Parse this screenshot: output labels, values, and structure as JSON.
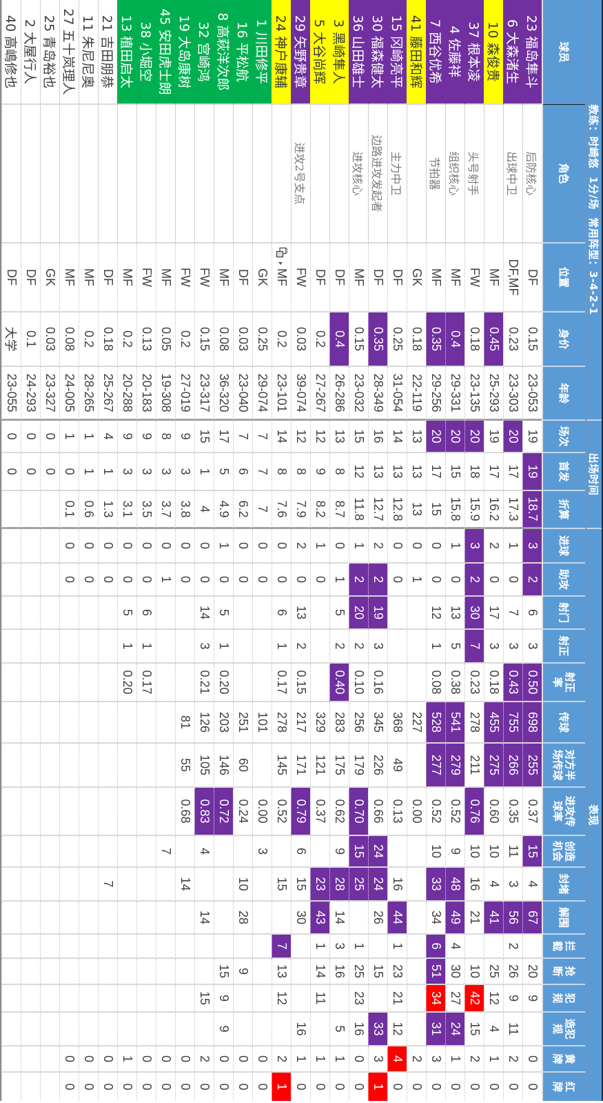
{
  "sheet": {
    "colors": {
      "header": "#5b9bd5",
      "purple": "#7030a0",
      "yellow": "#ffff00",
      "green": "#00b050",
      "red": "#ff0000"
    },
    "title_groups": [
      {
        "label": "教练：时崎悠  1分/场  常用阵型：3-4-2-1"
      },
      {
        "label": "出场时间"
      },
      {
        "label": "表现"
      }
    ],
    "columns": [
      {
        "key": "player",
        "label": "球员"
      },
      {
        "key": "role",
        "label": "角色"
      },
      {
        "key": "position",
        "label": "位置"
      },
      {
        "key": "value",
        "label": "身价"
      },
      {
        "key": "age",
        "label": "年龄"
      },
      {
        "key": "apps",
        "label": "场次"
      },
      {
        "key": "starts",
        "label": "首发"
      },
      {
        "key": "equiv-apps",
        "label": "折算"
      },
      {
        "key": "goals",
        "label": "进球"
      },
      {
        "key": "assists",
        "label": "助攻"
      },
      {
        "key": "shots",
        "label": "射门"
      },
      {
        "key": "shots-on-target",
        "label": "射正"
      },
      {
        "key": "shot-accuracy",
        "label": "射正\n率"
      },
      {
        "key": "passes",
        "label": "传球"
      },
      {
        "key": "opp-half-passes",
        "label": "对方半\n场传球"
      },
      {
        "key": "attacking-pass-rate",
        "label": "进攻传\n球率"
      },
      {
        "key": "chances-created",
        "label": "创造\n机会"
      },
      {
        "key": "blocks",
        "label": "封堵"
      },
      {
        "key": "clearances",
        "label": "解围"
      },
      {
        "key": "interceptions",
        "label": "拦\n截"
      },
      {
        "key": "tackles",
        "label": "抢\n断"
      },
      {
        "key": "fouls",
        "label": "犯\n规"
      },
      {
        "key": "fouled",
        "label": "造犯\n规"
      },
      {
        "key": "yellow-cards",
        "label": "黄\n牌"
      },
      {
        "key": "red-cards",
        "label": "红\n牌"
      }
    ],
    "rows": [
      {
        "player": "23 福岛隼斗",
        "tag": "purple",
        "cells": [
          "后防核心",
          "DF",
          "0.15",
          "23-053",
          "19",
          "19",
          "18.7",
          "3",
          "2",
          "6",
          "3",
          "0.50",
          "698",
          "255",
          "0.37",
          "15",
          "4",
          "67",
          "",
          "20",
          "9",
          "",
          "0",
          "0"
        ],
        "purple": [
          5,
          6,
          7,
          8,
          11,
          12,
          13,
          15,
          17
        ],
        "red": []
      },
      {
        "player": "6 大森渚生",
        "tag": "purple",
        "cells": [
          "出球中卫",
          "DF,MF",
          "0.23",
          "23-303",
          "20",
          "17",
          "17.3",
          "1",
          "0",
          "7",
          "3",
          "0.43",
          "755",
          "266",
          "0.35",
          "11",
          "3",
          "56",
          "2",
          "26",
          "9",
          "11",
          "2",
          "0"
        ],
        "purple": [
          4,
          11,
          12,
          13,
          17
        ],
        "red": []
      },
      {
        "player": "10 森俊贵",
        "tag": "yellow",
        "cells": [
          "",
          "MF",
          "0.45",
          "25-293",
          "19",
          "17",
          "16.2",
          "2",
          "0",
          "17",
          "3",
          "0.18",
          "455",
          "275",
          "0.60",
          "10",
          "4",
          "41",
          "",
          "25",
          "12",
          "4",
          "1",
          "0"
        ],
        "purple": [
          2,
          12,
          13,
          17
        ],
        "red": []
      },
      {
        "player": "37 根本凌",
        "tag": "purple",
        "cells": [
          "头号射手",
          "FW",
          "0.18",
          "23-135",
          "20",
          "18",
          "15.9",
          "3",
          "2",
          "30",
          "7",
          "0.23",
          "278",
          "211",
          "0.76",
          "10",
          "16",
          "21",
          "",
          "10",
          "42",
          "15",
          "2",
          "0"
        ],
        "purple": [
          4,
          7,
          8,
          9,
          10,
          14
        ],
        "red": [
          20
        ]
      },
      {
        "player": "4 佐藤祥",
        "tag": "purple",
        "cells": [
          "组织核心",
          "MF",
          "0.4",
          "29-331",
          "20",
          "15",
          "15.8",
          "1",
          "0",
          "13",
          "5",
          "0.38",
          "541",
          "279",
          "0.52",
          "9",
          "48",
          "49",
          "4",
          "30",
          "27",
          "24",
          "1",
          "0"
        ],
        "purple": [
          2,
          4,
          12,
          13,
          16,
          17,
          21
        ],
        "red": []
      },
      {
        "player": "7 西谷优希",
        "tag": "purple",
        "cells": [
          "节拍器",
          "MF",
          "0.35",
          "29-256",
          "20",
          "17",
          "15",
          "0",
          "0",
          "12",
          "1",
          "0.08",
          "528",
          "277",
          "0.52",
          "10",
          "33",
          "34",
          "6",
          "51",
          "34",
          "31",
          "3",
          "0"
        ],
        "purple": [
          2,
          4,
          12,
          13,
          16,
          18,
          19,
          21
        ],
        "red": [
          20
        ]
      },
      {
        "player": "41 藤田和辉",
        "tag": "yellow",
        "cells": [
          "",
          "GK",
          "0.18",
          "22-119",
          "13",
          "13",
          "13",
          "0",
          "1",
          "",
          "",
          "",
          "227",
          "",
          "0.00",
          "",
          "",
          "",
          "",
          "",
          "",
          "",
          "2",
          "0"
        ],
        "purple": [],
        "red": []
      },
      {
        "player": "15 冈崎亮平",
        "tag": "purple",
        "cells": [
          "主力中卫",
          "DF",
          "0.25",
          "31-054",
          "14",
          "13",
          "12.8",
          "0",
          "0",
          "",
          "",
          "",
          "368",
          "49",
          "0.13",
          "",
          "16",
          "44",
          "1",
          "23",
          "21",
          "12",
          "4",
          "0"
        ],
        "purple": [
          17
        ],
        "red": [
          22
        ]
      },
      {
        "player": "30 福森健太",
        "tag": "purple",
        "cells": [
          "边路进攻发起者",
          "DF",
          "0.35",
          "28-349",
          "16",
          "13",
          "12.7",
          "2",
          "2",
          "19",
          "3",
          "0.16",
          "345",
          "226",
          "0.66",
          "24",
          "24",
          "26",
          "",
          "15",
          "",
          "33",
          "3",
          "1"
        ],
        "purple": [
          2,
          8,
          9,
          15,
          16,
          21
        ],
        "red": [
          23
        ]
      },
      {
        "player": "36 山田雄士",
        "tag": "purple",
        "cells": [
          "进攻核心",
          "MF",
          "0.15",
          "23-032",
          "15",
          "12",
          "11.8",
          "1",
          "2",
          "20",
          "2",
          "0.10",
          "256",
          "179",
          "0.70",
          "15",
          "25",
          "",
          "1",
          "25",
          "23",
          "16",
          "0",
          "0"
        ],
        "purple": [
          8,
          9,
          14,
          15,
          16
        ],
        "red": []
      },
      {
        "player": "3 黑崎隼人",
        "tag": "yellow",
        "cells": [
          "",
          "DF",
          "0.4",
          "26-286",
          "13",
          "8",
          "8.7",
          "0",
          "1",
          "5",
          "2",
          "0.40",
          "283",
          "175",
          "0.62",
          "9",
          "28",
          "14",
          "3",
          "16",
          "",
          "5",
          "1",
          "0"
        ],
        "purple": [
          2,
          11,
          16
        ],
        "red": []
      },
      {
        "player": "5 大谷尚辉",
        "tag": "yellow",
        "cells": [
          "",
          "DF",
          "0.2",
          "27-267",
          "12",
          "9",
          "8.2",
          "1",
          "0",
          "",
          "",
          "",
          "329",
          "121",
          "0.37",
          "",
          "23",
          "43",
          "1",
          "14",
          "11",
          "",
          "1",
          "0"
        ],
        "purple": [
          16,
          17
        ],
        "red": []
      },
      {
        "player": "29 矢野贵章",
        "tag": "purple",
        "cells": [
          "进攻2号支点",
          "FW",
          "0.03",
          "39-074",
          "12",
          "8",
          "7.9",
          "2",
          "0",
          "13",
          "2",
          "0.15",
          "217",
          "171",
          "0.79",
          "6",
          "15",
          "30",
          "",
          "",
          "",
          "16",
          "1",
          "0"
        ],
        "purple": [
          14
        ],
        "red": []
      },
      {
        "player": "24 神户康辅",
        "tag": "yellow",
        "cells": [
          "",
          "MF",
          "0.2",
          "23-101",
          "14",
          "8",
          "7.6",
          "0",
          "0",
          "6",
          "1",
          "0.17",
          "278",
          "145",
          "0.52",
          "",
          "15",
          "",
          "7",
          "13",
          "12",
          "",
          "2",
          "1"
        ],
        "purple": [
          18
        ],
        "red": [
          23
        ]
      },
      {
        "player": "1 川田修平",
        "tag": "green",
        "cells": [
          "",
          "GK",
          "0.25",
          "29-074",
          "7",
          "7",
          "7",
          "0",
          "0",
          "",
          "",
          "",
          "101",
          "",
          "0.00",
          "3",
          "",
          "",
          "",
          "",
          "",
          "",
          "0",
          "0"
        ],
        "purple": [],
        "red": []
      },
      {
        "player": "16 平松航",
        "tag": "green",
        "cells": [
          "",
          "DF",
          "0.03",
          "23-040",
          "7",
          "6",
          "6.2",
          "0",
          "0",
          "",
          "",
          "",
          "251",
          "60",
          "0.24",
          "",
          "10",
          "28",
          "",
          "9",
          "",
          "",
          "0",
          "0"
        ],
        "purple": [],
        "red": []
      },
      {
        "player": "8 高萩洋次郎",
        "tag": "green",
        "cells": [
          "",
          "MF",
          "0.08",
          "36-320",
          "17",
          "5",
          "4.9",
          "1",
          "0",
          "5",
          "1",
          "0.20",
          "203",
          "146",
          "0.72",
          "",
          "",
          "",
          "",
          "15",
          "9",
          "9",
          "0",
          "0"
        ],
        "purple": [
          14
        ],
        "red": []
      },
      {
        "player": "32 宫崎鸿",
        "tag": "green",
        "cells": [
          "",
          "FW",
          "0.15",
          "23-317",
          "15",
          "1",
          "4",
          "0",
          "0",
          "14",
          "3",
          "0.21",
          "126",
          "105",
          "0.83",
          "4",
          "",
          "14",
          "",
          "",
          "15",
          "",
          "2",
          "0"
        ],
        "purple": [
          14
        ],
        "red": []
      },
      {
        "player": "19 大岛康树",
        "tag": "green",
        "cells": [
          "",
          "FW",
          "0.2",
          "27-019",
          "9",
          "3",
          "3.8",
          "0",
          "0",
          "",
          "",
          "",
          "81",
          "55",
          "0.68",
          "",
          "14",
          "",
          "",
          "",
          "",
          "",
          "0",
          "0"
        ],
        "purple": [],
        "red": []
      },
      {
        "player": "45 安田虎士朗",
        "tag": "green",
        "cells": [
          "",
          "MF",
          "0.05",
          "19-308",
          "8",
          "3",
          "3.7",
          "0",
          "1",
          "",
          "",
          "",
          "",
          "",
          "",
          "7",
          "",
          "",
          "",
          "",
          "",
          "",
          "0",
          "0"
        ],
        "purple": [],
        "red": []
      },
      {
        "player": "38 小堀空",
        "tag": "green",
        "cells": [
          "",
          "FW",
          "0.13",
          "20-183",
          "9",
          "3",
          "3.5",
          "0",
          "0",
          "6",
          "1",
          "0.17",
          "",
          "",
          "",
          "",
          "",
          "",
          "",
          "",
          "",
          "",
          "0",
          "0"
        ],
        "purple": [],
        "red": []
      },
      {
        "player": "13 植田启太",
        "tag": "green",
        "cells": [
          "",
          "MF",
          "0.2",
          "20-288",
          "9",
          "3",
          "3.1",
          "0",
          "0",
          "5",
          "1",
          "0.20",
          "",
          "",
          "",
          "",
          "",
          "",
          "",
          "",
          "",
          "",
          "1",
          "0"
        ],
        "purple": [],
        "red": []
      },
      {
        "player": "21 吉田朋恭",
        "tag": "none",
        "cells": [
          "",
          "DF",
          "0.18",
          "25-267",
          "4",
          "1",
          "1.3",
          "0",
          "0",
          "",
          "",
          "",
          "",
          "",
          "",
          "",
          "7",
          "",
          "",
          "",
          "",
          "",
          "0",
          "0"
        ],
        "purple": [],
        "red": []
      },
      {
        "player": "11 朱尼尼奥",
        "tag": "none",
        "cells": [
          "",
          "MF",
          "0.2",
          "28-265",
          "1",
          "1",
          "0.6",
          "0",
          "0",
          "",
          "",
          "",
          "",
          "",
          "",
          "",
          "",
          "",
          "",
          "",
          "",
          "",
          "0",
          "0"
        ],
        "purple": [],
        "red": []
      },
      {
        "player": "27 五十岚理人",
        "tag": "none",
        "cells": [
          "",
          "MF",
          "0.08",
          "24-005",
          "1",
          "0",
          "0.1",
          "0",
          "0",
          "",
          "",
          "",
          "",
          "",
          "",
          "",
          "",
          "",
          "",
          "",
          "",
          "",
          "0",
          "0"
        ],
        "purple": [],
        "red": []
      },
      {
        "player": "25 青岛裕也",
        "tag": "none",
        "cells": [
          "",
          "GK",
          "0.03",
          "23-327",
          "0",
          "0",
          "",
          "",
          "",
          "",
          "",
          "",
          "",
          "",
          "",
          "",
          "",
          "",
          "",
          "",
          "",
          "",
          "",
          ""
        ],
        "purple": [],
        "red": []
      },
      {
        "player": "2 大屋行人",
        "tag": "none",
        "cells": [
          "",
          "DF",
          "0.1",
          "24-293",
          "0",
          "0",
          "",
          "",
          "",
          "",
          "",
          "",
          "",
          "",
          "",
          "",
          "",
          "",
          "",
          "",
          "",
          "",
          "",
          ""
        ],
        "purple": [],
        "red": []
      },
      {
        "player": "40 高嶋修也",
        "tag": "none",
        "cells": [
          "",
          "DF",
          "大学",
          "23-055",
          "0",
          "0",
          "",
          "",
          "",
          "",
          "",
          "",
          "",
          "",
          "",
          "",
          "",
          "",
          "",
          "",
          "",
          "",
          "",
          ""
        ],
        "purple": [],
        "red": []
      }
    ]
  }
}
